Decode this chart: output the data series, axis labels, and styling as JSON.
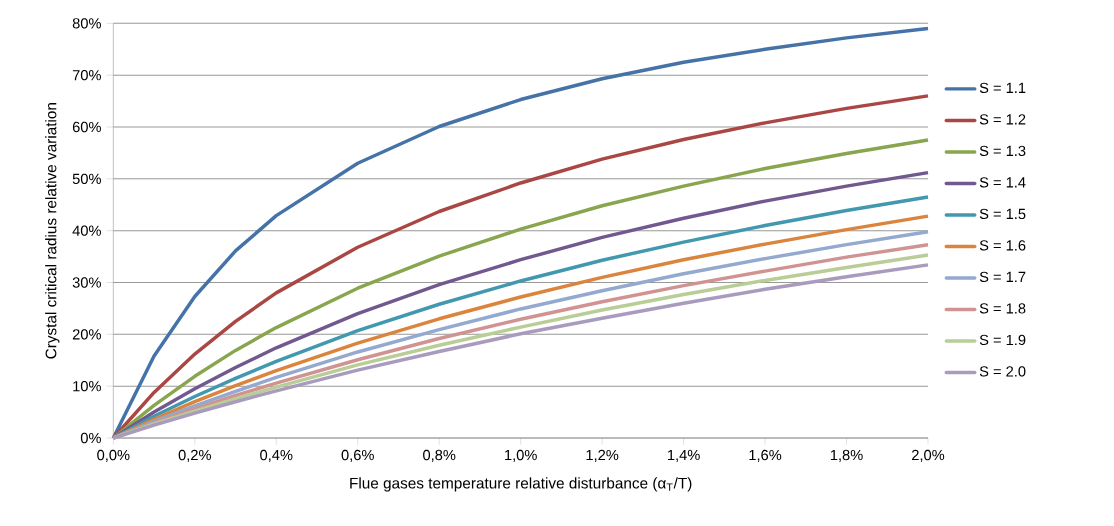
{
  "chart_data": {
    "type": "line",
    "xlabel": "Flue gases temperature relative disturbance (α$_{T}$/T)",
    "ylabel": "Crystal critical radius relative variation",
    "x": [
      0,
      0.1,
      0.2,
      0.3,
      0.4,
      0.6,
      0.8,
      1.0,
      1.2,
      1.4,
      1.6,
      1.8,
      2.0
    ],
    "series": [
      {
        "name": "S = 1.1",
        "color": "#4572a7",
        "values": [
          0,
          15.8,
          27.3,
          36.1,
          42.9,
          53.0,
          60.1,
          65.3,
          69.3,
          72.5,
          75.0,
          77.2,
          79.0
        ]
      },
      {
        "name": "S = 1.2",
        "color": "#aa4643",
        "values": [
          0,
          8.8,
          16.2,
          22.5,
          28.0,
          36.8,
          43.7,
          49.2,
          53.8,
          57.6,
          60.8,
          63.6,
          66.0
        ]
      },
      {
        "name": "S = 1.3",
        "color": "#89a54e",
        "values": [
          0,
          6.3,
          11.9,
          16.9,
          21.3,
          28.9,
          35.1,
          40.3,
          44.8,
          48.6,
          52.0,
          54.9,
          57.5
        ]
      },
      {
        "name": "S = 1.4",
        "color": "#71588f",
        "values": [
          0,
          5.0,
          9.5,
          13.6,
          17.4,
          24.0,
          29.6,
          34.4,
          38.7,
          42.4,
          45.7,
          48.6,
          51.2
        ]
      },
      {
        "name": "S = 1.5",
        "color": "#4198af",
        "values": [
          0,
          4.2,
          8.0,
          11.5,
          14.8,
          20.7,
          25.8,
          30.3,
          34.3,
          37.8,
          41.0,
          43.9,
          46.5
        ]
      },
      {
        "name": "S = 1.6",
        "color": "#db843d",
        "values": [
          0,
          3.6,
          7.0,
          10.1,
          13.0,
          18.3,
          23.0,
          27.2,
          31.0,
          34.4,
          37.4,
          40.2,
          42.8
        ]
      },
      {
        "name": "S = 1.7",
        "color": "#93a9cf",
        "values": [
          0,
          3.2,
          6.2,
          9.0,
          11.7,
          16.6,
          20.9,
          24.9,
          28.4,
          31.7,
          34.6,
          37.3,
          39.8
        ]
      },
      {
        "name": "S = 1.8",
        "color": "#d19392",
        "values": [
          0,
          2.9,
          5.6,
          8.2,
          10.6,
          15.1,
          19.2,
          22.9,
          26.3,
          29.4,
          32.2,
          34.9,
          37.3
        ]
      },
      {
        "name": "S = 1.9",
        "color": "#b9cd96",
        "values": [
          0,
          2.7,
          5.2,
          7.6,
          9.8,
          14.1,
          17.9,
          21.4,
          24.7,
          27.7,
          30.4,
          32.9,
          35.3
        ]
      },
      {
        "name": "S = 2.0",
        "color": "#a99bbd",
        "values": [
          0,
          2.5,
          4.8,
          7.0,
          9.1,
          13.1,
          16.7,
          20.1,
          23.1,
          26.0,
          28.7,
          31.1,
          33.4
        ]
      }
    ],
    "xlim": [
      0,
      2.0
    ],
    "ylim": [
      0,
      80
    ],
    "xticks": [
      {
        "value": 0,
        "label": "0,0%"
      },
      {
        "value": 0.2,
        "label": "0,2%"
      },
      {
        "value": 0.4,
        "label": "0,4%"
      },
      {
        "value": 0.6,
        "label": "0,6%"
      },
      {
        "value": 0.8,
        "label": "0,8%"
      },
      {
        "value": 1.0,
        "label": "1,0%"
      },
      {
        "value": 1.2,
        "label": "1,2%"
      },
      {
        "value": 1.4,
        "label": "1,4%"
      },
      {
        "value": 1.6,
        "label": "1,6%"
      },
      {
        "value": 1.8,
        "label": "1,8%"
      },
      {
        "value": 2.0,
        "label": "2,0%"
      }
    ],
    "yticks": [
      {
        "value": 0,
        "label": "0%"
      },
      {
        "value": 10,
        "label": "10%"
      },
      {
        "value": 20,
        "label": "20%"
      },
      {
        "value": 30,
        "label": "30%"
      },
      {
        "value": 40,
        "label": "40%"
      },
      {
        "value": 50,
        "label": "50%"
      },
      {
        "value": 60,
        "label": "60%"
      },
      {
        "value": 70,
        "label": "70%"
      },
      {
        "value": 80,
        "label": "80%"
      }
    ],
    "grid": "y",
    "legend": "right",
    "marker": "none",
    "line_style": "solid"
  }
}
